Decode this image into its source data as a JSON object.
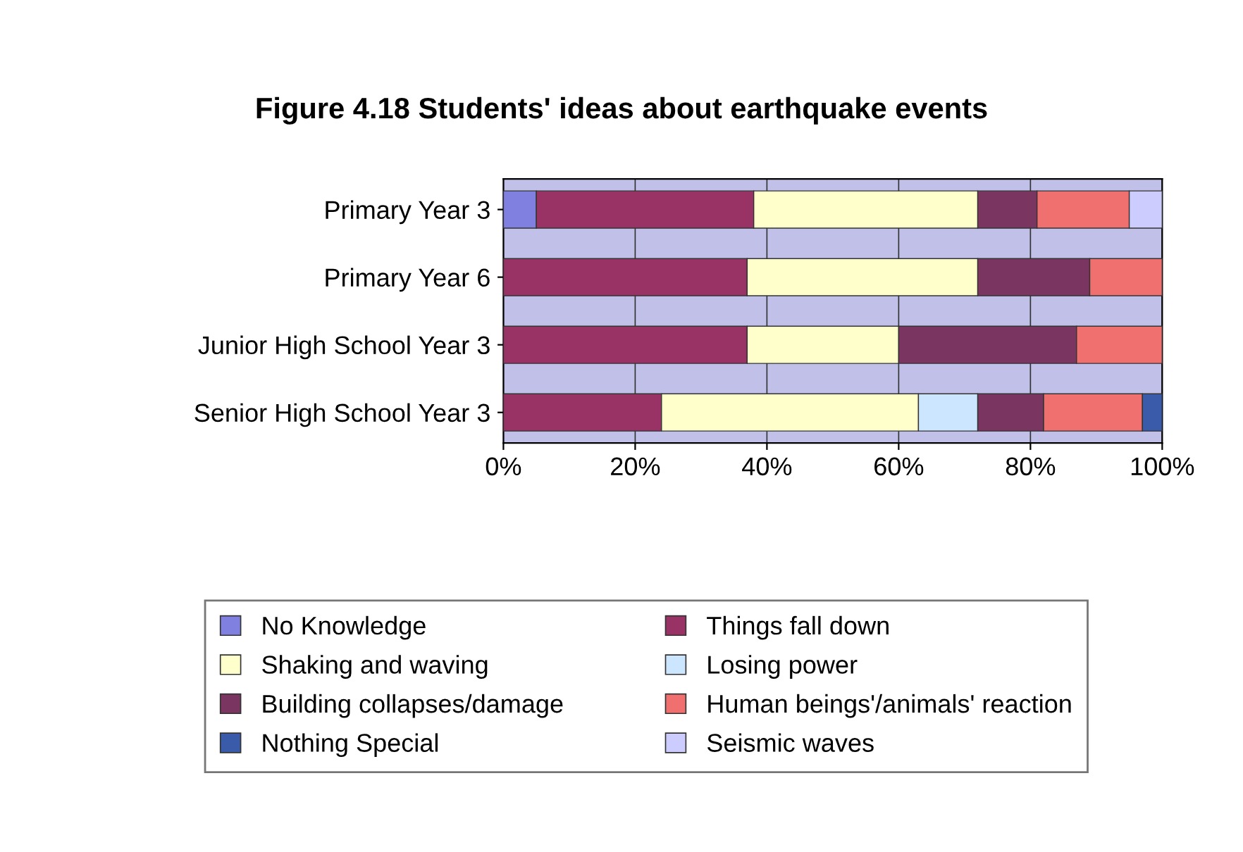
{
  "chart_data": {
    "type": "bar",
    "orientation": "horizontal",
    "stacked": true,
    "title": "Figure 4.18 Students' ideas about earthquake events",
    "categories": [
      "Primary Year 3",
      "Primary Year 6",
      "Junior High School Year 3",
      "Senior High School Year 3"
    ],
    "series": [
      {
        "name": "No Knowledge",
        "color": "#8080e0",
        "values": [
          5,
          0,
          0,
          0
        ]
      },
      {
        "name": "Things fall down",
        "color": "#993366",
        "values": [
          33,
          37,
          37,
          24
        ]
      },
      {
        "name": "Shaking and waving",
        "color": "#ffffcc",
        "values": [
          34,
          35,
          23,
          39
        ]
      },
      {
        "name": "Losing power",
        "color": "#cce6ff",
        "values": [
          0,
          0,
          0,
          9
        ]
      },
      {
        "name": "Building collapses/damage",
        "color": "#7a3560",
        "values": [
          9,
          17,
          27,
          10
        ]
      },
      {
        "name": "Human beings'/animals' reaction",
        "color": "#f07070",
        "values": [
          14,
          11,
          13,
          15
        ]
      },
      {
        "name": "Nothing Special",
        "color": "#3a5aaa",
        "values": [
          0,
          0,
          0,
          3
        ]
      },
      {
        "name": "Seismic waves",
        "color": "#ccccff",
        "values": [
          5,
          0,
          0,
          0
        ]
      }
    ],
    "xlim": [
      0,
      100
    ],
    "xticks": [
      {
        "value": 0,
        "label": "0%"
      },
      {
        "value": 20,
        "label": "20%"
      },
      {
        "value": 40,
        "label": "40%"
      },
      {
        "value": 60,
        "label": "60%"
      },
      {
        "value": 80,
        "label": "80%"
      },
      {
        "value": 100,
        "label": "100%"
      }
    ],
    "grid": "x",
    "legend": "bottom"
  }
}
